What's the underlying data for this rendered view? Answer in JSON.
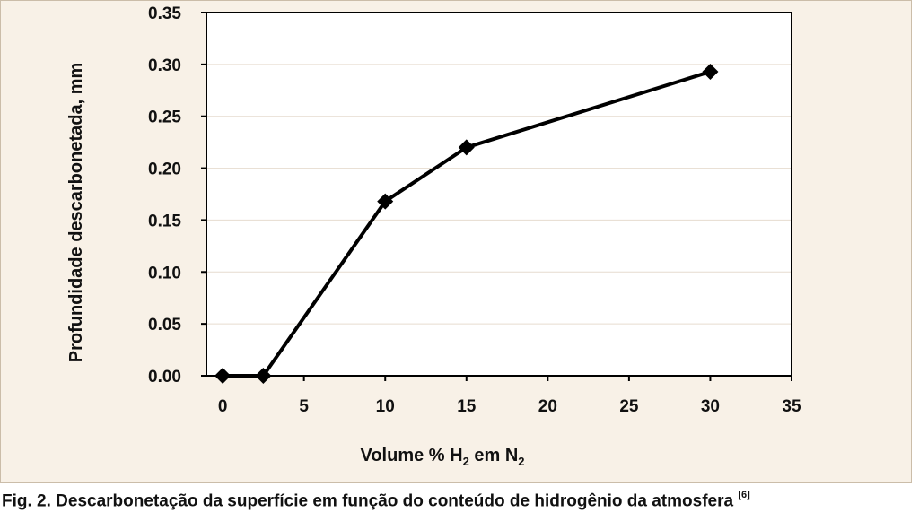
{
  "chart_data": {
    "type": "line",
    "x": [
      0,
      2.5,
      10,
      15,
      30
    ],
    "values": [
      0.0,
      0.0,
      0.168,
      0.22,
      0.293
    ],
    "xlim": [
      -1,
      35
    ],
    "ylim": [
      0,
      0.35
    ],
    "xticks": [
      0,
      5,
      10,
      15,
      20,
      25,
      30,
      35
    ],
    "xtick_labels": [
      "0",
      "5",
      "10",
      "15",
      "20",
      "25",
      "30",
      "35"
    ],
    "yticks": [
      0,
      0.05,
      0.1,
      0.15,
      0.2,
      0.25,
      0.3,
      0.35
    ],
    "ytick_labels": [
      "0.00",
      "0.05",
      "0.10",
      "0.15",
      "0.20",
      "0.25",
      "0.30",
      "0.35"
    ],
    "ylabel": "Profundidade descarbonetada, mm",
    "xlabel": {
      "part1": "Volume % H",
      "sub1": "2",
      "part2": " em N",
      "sub2": "2"
    },
    "marker": "diamond",
    "grid": "horizontal",
    "colors": {
      "line": "#000000",
      "grid": "#e6dccf",
      "panel": "#f8f1e7",
      "plot_area": "#ffffff"
    }
  },
  "caption": {
    "text": "Fig. 2. Descarbonetação da superfície em função do conteúdo de hidrogênio da atmosfera ",
    "ref": "[6]"
  }
}
